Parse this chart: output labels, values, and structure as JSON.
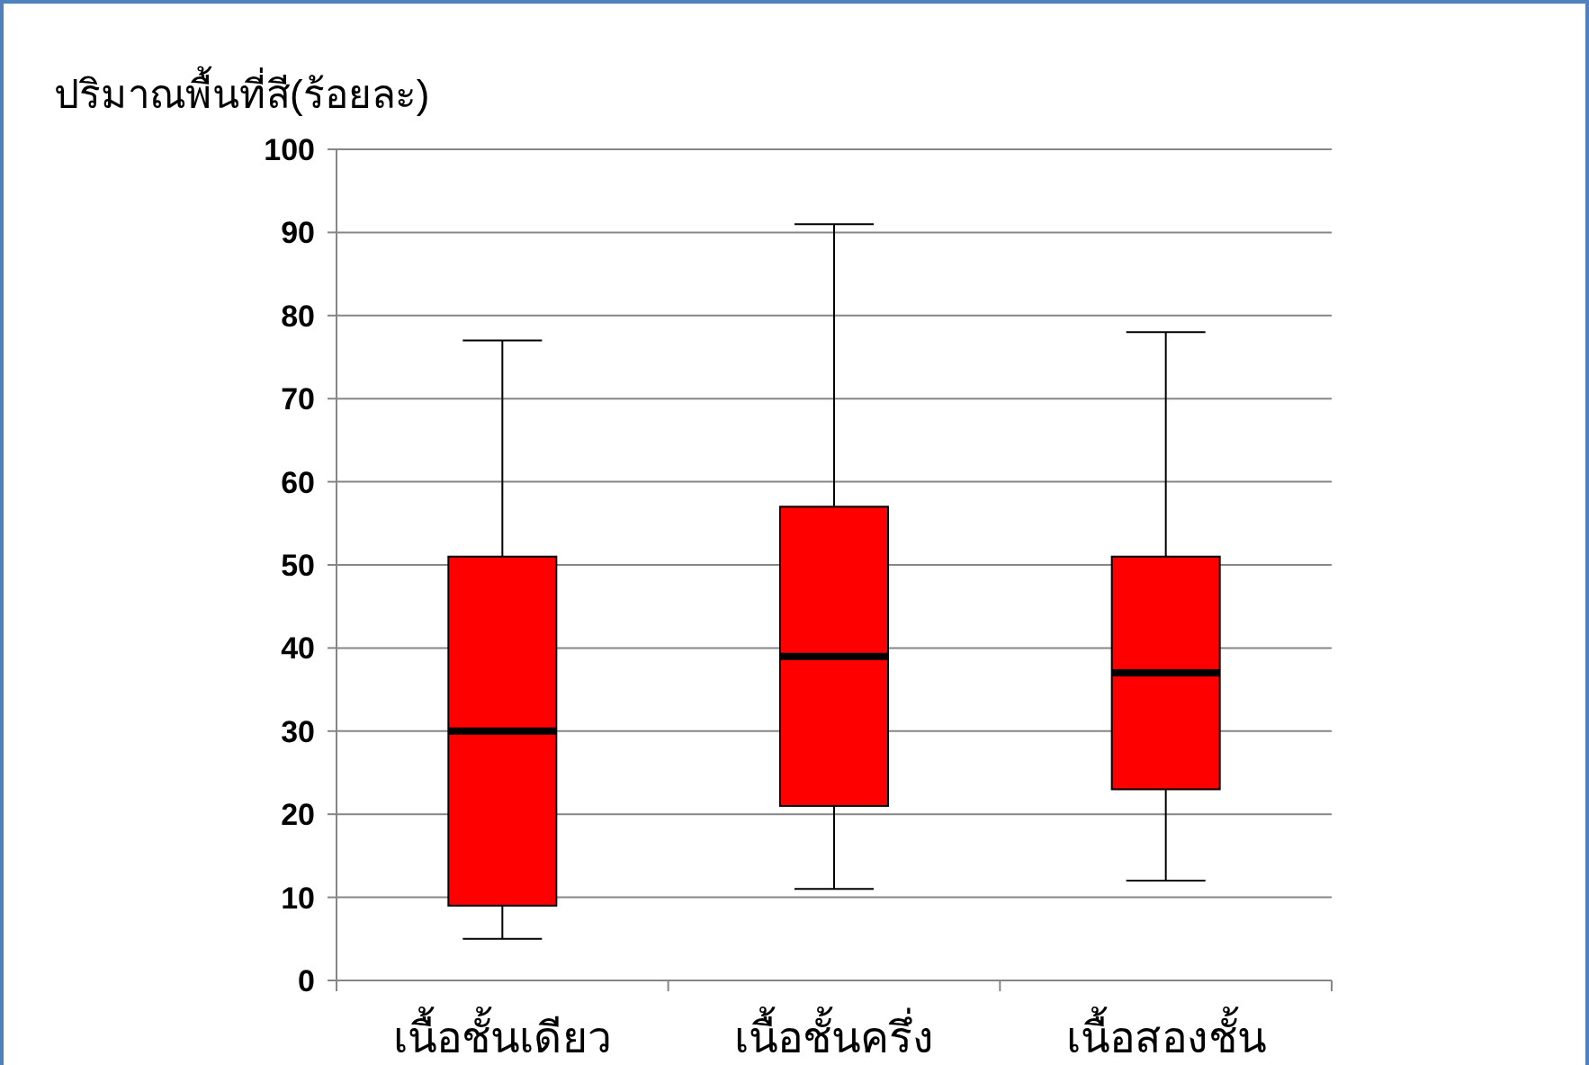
{
  "chart_data": {
    "type": "box",
    "ylabel": "ปริมาณพื้นที่สี(ร้อยละ)",
    "categories": [
      "เนื้อชั้นเดียว",
      "เนื้อชั้นครึ่ง",
      "เนื้อสองชั้น"
    ],
    "series": [
      {
        "color": "#ff0000",
        "boxes": [
          {
            "low": 5,
            "q1": 9,
            "median": 30,
            "q3": 51,
            "high": 77
          },
          {
            "low": 11,
            "q1": 21,
            "median": 39,
            "q3": 57,
            "high": 91
          },
          {
            "low": 12,
            "q1": 23,
            "median": 37,
            "q3": 51,
            "high": 78
          }
        ]
      }
    ],
    "ylim": [
      0,
      100
    ],
    "yticks": [
      0,
      10,
      20,
      30,
      40,
      50,
      60,
      70,
      80,
      90,
      100
    ],
    "grid": "y"
  }
}
